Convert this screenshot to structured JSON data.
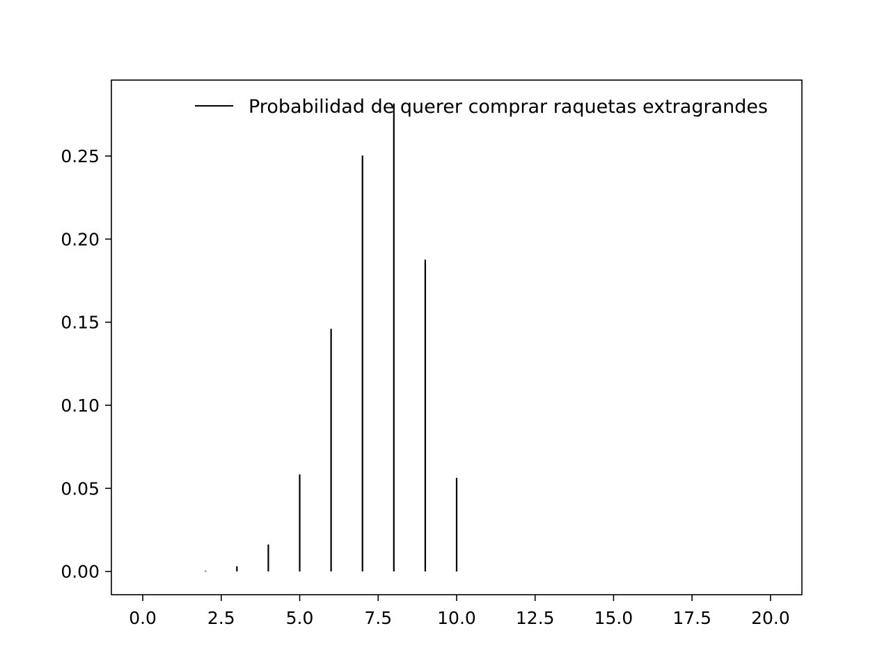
{
  "chart_data": {
    "type": "bar",
    "style": "vlines",
    "x": [
      0,
      1,
      2,
      3,
      4,
      5,
      6,
      7,
      8,
      9,
      10
    ],
    "series": [
      {
        "name": "Probabilidad de querer comprar raquetas extragrandes",
        "values": [
          0.0,
          0.0,
          0.0004,
          0.0031,
          0.0162,
          0.0584,
          0.146,
          0.2503,
          0.2816,
          0.1877,
          0.0563
        ],
        "color": "#000000"
      }
    ],
    "title": "",
    "xlabel": "",
    "ylabel": "",
    "xlim": [
      -1,
      21
    ],
    "ylim": [
      -0.014,
      0.2957
    ],
    "xticks": [
      0,
      2.5,
      5,
      7.5,
      10,
      12.5,
      15,
      17.5,
      20
    ],
    "xtick_labels": [
      "0.0",
      "2.5",
      "5.0",
      "7.5",
      "10.0",
      "12.5",
      "15.0",
      "17.5",
      "20.0"
    ],
    "yticks": [
      0,
      0.05,
      0.1,
      0.15,
      0.2,
      0.25
    ],
    "ytick_labels": [
      "0.00",
      "0.05",
      "0.10",
      "0.15",
      "0.20",
      "0.25"
    ],
    "grid": false,
    "legend_position": "top-right"
  }
}
